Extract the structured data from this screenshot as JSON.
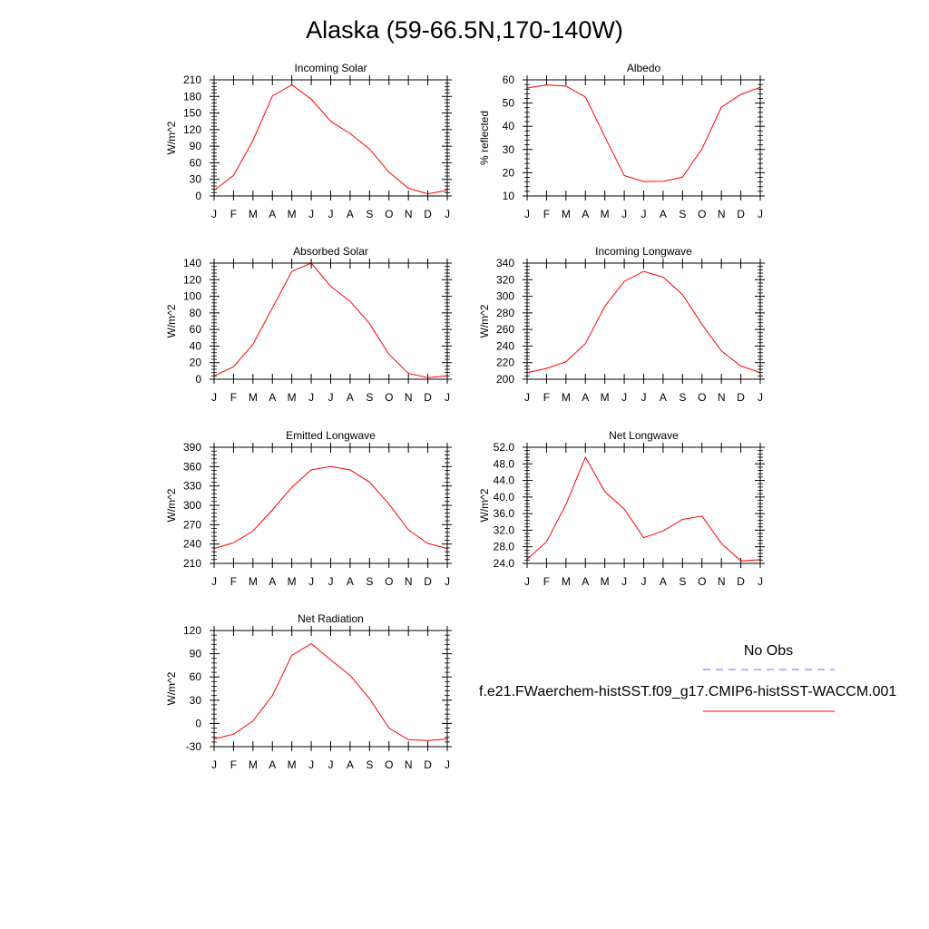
{
  "title": "Alaska (59-66.5N,170-140W)",
  "legend": {
    "obs_label": "No Obs",
    "model_label": "f.e21.FWaerchem-histSST.f09_g17.CMIP6-histSST-WACCM.001",
    "obs_color": "#6a6aff",
    "model_color": "#ff0000"
  },
  "chart_data": [
    {
      "type": "line",
      "title": "Incoming Solar",
      "ylabel": "W/m^2",
      "x": [
        "J",
        "F",
        "M",
        "A",
        "M",
        "J",
        "J",
        "A",
        "S",
        "O",
        "N",
        "D",
        "J"
      ],
      "ylim": [
        0,
        210
      ],
      "yticks": [
        "0",
        "30",
        "60",
        "90",
        "120",
        "150",
        "180",
        "210"
      ],
      "series": [
        {
          "values": [
            10,
            37,
            100,
            181,
            201,
            175,
            135,
            113,
            85,
            43,
            14,
            4,
            10
          ]
        }
      ]
    },
    {
      "type": "line",
      "title": "Albedo",
      "ylabel": "% reflected",
      "x": [
        "J",
        "F",
        "M",
        "A",
        "M",
        "J",
        "J",
        "A",
        "S",
        "O",
        "N",
        "D",
        "J"
      ],
      "ylim": [
        10,
        60
      ],
      "yticks": [
        "10",
        "20",
        "30",
        "40",
        "50",
        "60"
      ],
      "series": [
        {
          "values": [
            56.5,
            57.8,
            57.3,
            52.6,
            35.5,
            18.8,
            16.2,
            16.3,
            18.1,
            30.3,
            48.3,
            53.7,
            56.8
          ]
        }
      ]
    },
    {
      "type": "line",
      "title": "Absorbed Solar",
      "ylabel": "W/m^2",
      "x": [
        "J",
        "F",
        "M",
        "A",
        "M",
        "J",
        "J",
        "A",
        "S",
        "O",
        "N",
        "D",
        "J"
      ],
      "ylim": [
        0,
        140
      ],
      "yticks": [
        "0",
        "20",
        "40",
        "60",
        "80",
        "100",
        "120",
        "140"
      ],
      "series": [
        {
          "values": [
            4,
            15,
            42,
            86,
            130,
            140,
            112,
            94,
            67,
            30,
            7,
            2,
            4
          ]
        }
      ]
    },
    {
      "type": "line",
      "title": "Incoming Longwave",
      "ylabel": "W/m^2",
      "x": [
        "J",
        "F",
        "M",
        "A",
        "M",
        "J",
        "J",
        "A",
        "S",
        "O",
        "N",
        "D",
        "J"
      ],
      "ylim": [
        200,
        340
      ],
      "yticks": [
        "200",
        "220",
        "240",
        "260",
        "280",
        "300",
        "320",
        "340"
      ],
      "series": [
        {
          "values": [
            208,
            213,
            221,
            243,
            288,
            318,
            330,
            323,
            302,
            266,
            234,
            216,
            208
          ]
        }
      ]
    },
    {
      "type": "line",
      "title": "Emitted Longwave",
      "ylabel": "W/m^2",
      "x": [
        "J",
        "F",
        "M",
        "A",
        "M",
        "J",
        "J",
        "A",
        "S",
        "O",
        "N",
        "D",
        "J"
      ],
      "ylim": [
        210,
        390
      ],
      "yticks": [
        "210",
        "240",
        "270",
        "300",
        "330",
        "360",
        "390"
      ],
      "series": [
        {
          "values": [
            233,
            242,
            260,
            293,
            328,
            355,
            360,
            355,
            336,
            302,
            262,
            241,
            233
          ]
        }
      ]
    },
    {
      "type": "line",
      "title": "Net Longwave",
      "ylabel": "W/m^2",
      "x": [
        "J",
        "F",
        "M",
        "A",
        "M",
        "J",
        "J",
        "A",
        "S",
        "O",
        "N",
        "D",
        "J"
      ],
      "ylim": [
        24,
        52
      ],
      "yticks": [
        "24.0",
        "28.0",
        "32.0",
        "36.0",
        "40.0",
        "44.0",
        "48.0",
        "52.0"
      ],
      "series": [
        {
          "values": [
            25.0,
            29.2,
            38.2,
            49.6,
            41.3,
            37.1,
            30.2,
            31.8,
            34.6,
            35.4,
            28.8,
            24.6,
            24.9
          ]
        }
      ]
    },
    {
      "type": "line",
      "title": "Net Radiation",
      "ylabel": "W/m^2",
      "x": [
        "J",
        "F",
        "M",
        "A",
        "M",
        "J",
        "J",
        "A",
        "S",
        "O",
        "N",
        "D",
        "J"
      ],
      "ylim": [
        -30,
        120
      ],
      "yticks": [
        "-30",
        "0",
        "30",
        "60",
        "90",
        "120"
      ],
      "series": [
        {
          "values": [
            -20,
            -14,
            3,
            36,
            88,
            103,
            82,
            62,
            32,
            -6,
            -21,
            -22,
            -20
          ]
        }
      ]
    }
  ]
}
